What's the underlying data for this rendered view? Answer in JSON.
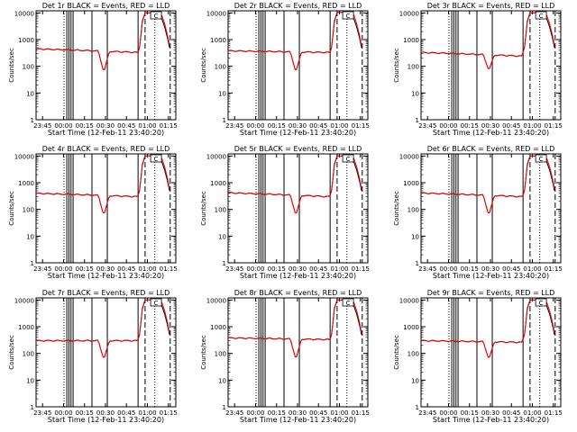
{
  "chart_data": {
    "type": "line",
    "layout": "3x3 grid",
    "xlabel": "Start Time (12-Feb-11 23:40:20)",
    "ylabel": "Counts/sec",
    "yscale": "log",
    "ylim": [
      1,
      12000
    ],
    "xlim_minutes": [
      0,
      100
    ],
    "xticks": [
      {
        "label": "23:45",
        "t": 4.67
      },
      {
        "label": "00:00",
        "t": 19.67
      },
      {
        "label": "00:15",
        "t": 34.67
      },
      {
        "label": "00:30",
        "t": 49.67
      },
      {
        "label": "00:45",
        "t": 64.67
      },
      {
        "label": "01:00",
        "t": 79.67
      },
      {
        "label": "01:15",
        "t": 94.67
      }
    ],
    "yticks": [
      {
        "label": "1",
        "v": 1
      },
      {
        "label": "10",
        "v": 10
      },
      {
        "label": "100",
        "v": 100
      },
      {
        "label": "1000",
        "v": 1000
      },
      {
        "label": "10000",
        "v": 10000
      }
    ],
    "dotted_lines_t": [
      20,
      85
    ],
    "dashed_lines_t": [
      78,
      96
    ],
    "solid_vlines_t": [
      22,
      23.5,
      25,
      26.5,
      40,
      51,
      73
    ],
    "legend_box_text": "C",
    "panels": [
      {
        "title": "Det 1r BLACK = Events, RED = LLD",
        "base": 450,
        "base_end": 330,
        "dip": 60,
        "peak": 10000
      },
      {
        "title": "Det 2r BLACK = Events, RED = LLD",
        "base": 380,
        "base_end": 330,
        "dip": 60,
        "peak": 10500
      },
      {
        "title": "Det 3r BLACK = Events, RED = LLD",
        "base": 330,
        "base_end": 240,
        "dip": 70,
        "peak": 10000
      },
      {
        "title": "Det 4r BLACK = Events, RED = LLD",
        "base": 400,
        "base_end": 300,
        "dip": 60,
        "peak": 10000
      },
      {
        "title": "Det 5r BLACK = Events, RED = LLD",
        "base": 420,
        "base_end": 300,
        "dip": 60,
        "peak": 10000
      },
      {
        "title": "Det 6r BLACK = Events, RED = LLD",
        "base": 410,
        "base_end": 300,
        "dip": 60,
        "peak": 10000
      },
      {
        "title": "Det 7r BLACK = Events, RED = LLD",
        "base": 300,
        "base_end": 300,
        "dip": 60,
        "peak": 10000
      },
      {
        "title": "Det 8r BLACK = Events, RED = LLD",
        "base": 380,
        "base_end": 330,
        "dip": 60,
        "peak": 10000
      },
      {
        "title": "Det 9r BLACK = Events, RED = LLD",
        "base": 300,
        "base_end": 260,
        "dip": 60,
        "peak": 10000
      }
    ],
    "series": [
      {
        "name": "Events",
        "color": "#000000"
      },
      {
        "name": "LLD",
        "color": "#ff0000"
      }
    ]
  }
}
